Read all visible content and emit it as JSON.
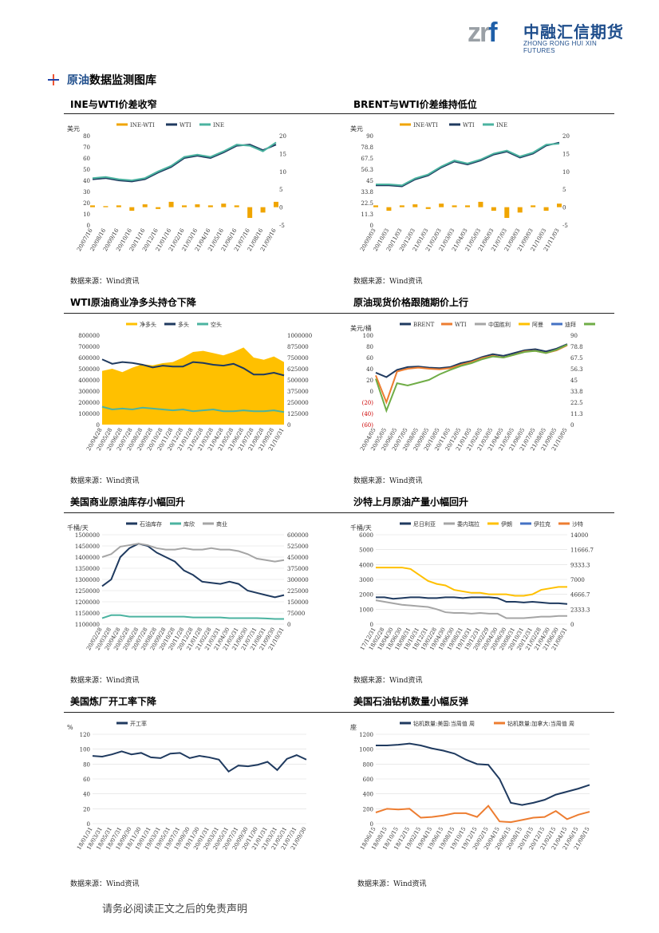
{
  "header": {
    "logo_zrf": "zrf",
    "logo_cn": "中融汇信期货",
    "logo_en": "ZHONG RONG HUI XIN FUTURES"
  },
  "section": {
    "title_a": "原油",
    "title_b": "数据监测图库"
  },
  "titles": [
    "INE与WTI价差收窄",
    "BRENT与WTI价差维持低位",
    "WTI原油商业净多头持仓下降",
    "原油现货价格跟随期价上行",
    "美国商业原油库存小幅回升",
    "沙特上月原油产量小幅回升",
    "美国炼厂开工率下降",
    "美国石油钻机数量小幅反弹"
  ],
  "source": "数据来源：Wind资讯",
  "footer": "请务必阅读正文之后的免责声明",
  "chart_data": [
    {
      "type": "line",
      "unit": "美元",
      "legend": [
        "INE-WTI",
        "WTI",
        "INE"
      ],
      "colors": [
        "#f0a500",
        "#1f3a5f",
        "#4bb3a0"
      ],
      "x": [
        "20/07/16",
        "20/08/16",
        "20/09/16",
        "20/10/16",
        "20/11/16",
        "20/12/16",
        "21/01/16",
        "21/02/16",
        "21/03/16",
        "21/04/16",
        "21/05/16",
        "21/06/16",
        "21/07/16",
        "21/08/16",
        "21/09/16"
      ],
      "series": [
        {
          "name": "WTI",
          "values": [
            41,
            42,
            40,
            39,
            41,
            47,
            52,
            60,
            62,
            60,
            65,
            71,
            72,
            67,
            72
          ]
        },
        {
          "name": "INE",
          "values": [
            42,
            43,
            41,
            40,
            42,
            48,
            53,
            61,
            63,
            61,
            66,
            72,
            71,
            66,
            74
          ]
        },
        {
          "name": "INE-WTI",
          "values": [
            0.5,
            0.3,
            0.5,
            -1.0,
            0.8,
            -0.5,
            1.5,
            0.5,
            0.8,
            0.5,
            1.0,
            0.5,
            -3.0,
            -1.5,
            1.5
          ]
        }
      ],
      "ylim": [
        0,
        80
      ],
      "y2lim": [
        -5,
        20
      ]
    },
    {
      "type": "line",
      "unit": "美元",
      "legend": [
        "INE-WTI",
        "WTI",
        "INE"
      ],
      "colors": [
        "#f0a500",
        "#1f3a5f",
        "#4bb3a0"
      ],
      "x": [
        "20/09/03",
        "20/10/03",
        "20/11/03",
        "20/12/03",
        "21/01/03",
        "21/02/03",
        "21/03/03",
        "21/04/03",
        "21/05/03",
        "21/06/03",
        "21/07/03",
        "21/08/03",
        "21/09/03",
        "21/10/03",
        "21/11/03"
      ],
      "series": [
        {
          "name": "WTI",
          "values": [
            40,
            40,
            39,
            46,
            50,
            58,
            64,
            61,
            65,
            71,
            74,
            68,
            72,
            80,
            83
          ]
        },
        {
          "name": "INE",
          "values": [
            41,
            41,
            40,
            47,
            51,
            59,
            65,
            62,
            66,
            72,
            75,
            69,
            73,
            81,
            82
          ]
        },
        {
          "name": "INE-WTI",
          "values": [
            0.5,
            -1.0,
            0.5,
            0.8,
            -0.5,
            1.0,
            0.5,
            0.5,
            1.5,
            -1.0,
            -3.0,
            -1.5,
            0.5,
            -1.0,
            1.0
          ]
        }
      ],
      "ylim": [
        0,
        90
      ],
      "y2lim": [
        -5,
        20
      ]
    },
    {
      "type": "area",
      "legend": [
        "净多头",
        "多头",
        "空头"
      ],
      "colors": [
        "#ffc000",
        "#1f3a5f",
        "#4bb3a0"
      ],
      "x": [
        "20/04/28",
        "20/05/28",
        "20/06/28",
        "20/07/28",
        "20/08/28",
        "20/09/28",
        "20/10/28",
        "20/11/28",
        "20/12/28",
        "21/01/28",
        "21/02/28",
        "21/03/28",
        "21/04/28",
        "21/05/28",
        "21/06/28",
        "21/07/28",
        "21/08/28",
        "21/09/28",
        "21/10/31"
      ],
      "series": [
        {
          "name": "净多头",
          "values": [
            480000,
            500000,
            470000,
            510000,
            540000,
            530000,
            550000,
            560000,
            600000,
            650000,
            660000,
            640000,
            620000,
            650000,
            690000,
            600000,
            580000,
            610000,
            560000
          ]
        },
        {
          "name": "多头",
          "values": [
            730000,
            680000,
            700000,
            690000,
            670000,
            640000,
            660000,
            650000,
            650000,
            700000,
            690000,
            670000,
            660000,
            680000,
            630000,
            560000,
            560000,
            580000,
            550000
          ]
        },
        {
          "name": "空头",
          "values": [
            200000,
            170000,
            180000,
            170000,
            190000,
            180000,
            170000,
            160000,
            170000,
            150000,
            160000,
            170000,
            150000,
            150000,
            160000,
            150000,
            150000,
            160000,
            140000
          ]
        }
      ],
      "ylim": [
        0,
        800000
      ],
      "y2lim": [
        0,
        1000000
      ]
    },
    {
      "type": "line",
      "unit": "美元/桶",
      "legend": [
        "BRENT",
        "WTI",
        "中国胜利",
        "阿曼",
        "迪拜",
        "OPEC"
      ],
      "colors": [
        "#1f3a5f",
        "#ed7d31",
        "#a5a5a5",
        "#ffc000",
        "#4472c4",
        "#70ad47"
      ],
      "x": [
        "20/04/05",
        "20/05/05",
        "20/06/05",
        "20/07/05",
        "20/08/05",
        "20/09/05",
        "20/10/05",
        "20/11/05",
        "20/12/05",
        "21/01/05",
        "21/02/05",
        "21/03/05",
        "21/04/05",
        "21/05/05",
        "21/06/05",
        "21/07/05",
        "21/08/05",
        "21/09/05",
        "21/10/05"
      ],
      "series": [
        {
          "name": "BRENT",
          "values": [
            33,
            25,
            38,
            43,
            44,
            42,
            41,
            43,
            50,
            54,
            61,
            66,
            63,
            68,
            73,
            75,
            71,
            76,
            84
          ]
        },
        {
          "name": "WTI",
          "values": [
            28,
            -20,
            35,
            40,
            42,
            40,
            39,
            41,
            47,
            52,
            59,
            63,
            60,
            65,
            71,
            72,
            68,
            73,
            82
          ]
        },
        {
          "name": "OPEC",
          "values": [
            22,
            -35,
            14,
            10,
            15,
            20,
            30,
            38,
            45,
            50,
            57,
            62,
            60,
            65,
            70,
            72,
            68,
            74,
            83
          ]
        }
      ],
      "ylim": [
        -60,
        100
      ],
      "y2lim": [
        0,
        90
      ]
    },
    {
      "type": "line",
      "unit": "千桶/天",
      "legend": [
        "石油库存",
        "库欣",
        "商业"
      ],
      "colors": [
        "#1f3a5f",
        "#4bb3a0",
        "#a5a5a5"
      ],
      "x": [
        "20/02/28",
        "20/03/28",
        "20/04/28",
        "20/05/28",
        "20/06/28",
        "20/07/28",
        "20/08/28",
        "20/09/28",
        "20/10/28",
        "20/11/28",
        "20/12/28",
        "21/01/28",
        "21/02/28",
        "21/03/31",
        "21/04/30",
        "21/05/31",
        "21/06/30",
        "21/07/31",
        "21/08/31",
        "21/09/30",
        "21/10/31"
      ],
      "series": [
        {
          "name": "石油库存",
          "values": [
            1270000,
            1300000,
            1400000,
            1440000,
            1460000,
            1450000,
            1420000,
            1400000,
            1380000,
            1340000,
            1320000,
            1290000,
            1285000,
            1280000,
            1290000,
            1280000,
            1250000,
            1240000,
            1230000,
            1220000,
            1230000
          ]
        },
        {
          "name": "库欣",
          "values": [
            40000,
            60000,
            60000,
            50000,
            50000,
            50000,
            50000,
            50000,
            50000,
            50000,
            45000,
            45000,
            45000,
            45000,
            40000,
            40000,
            40000,
            40000,
            38000,
            35000,
            35000
          ]
        },
        {
          "name": "商业",
          "values": [
            450000,
            470000,
            520000,
            530000,
            540000,
            530000,
            510000,
            500000,
            500000,
            510000,
            500000,
            500000,
            510000,
            500000,
            500000,
            490000,
            470000,
            440000,
            430000,
            420000,
            430000
          ]
        }
      ],
      "ylim": [
        1100000,
        1500000
      ],
      "y2lim": [
        0,
        600000
      ]
    },
    {
      "type": "line",
      "unit": "千桶/天",
      "legend": [
        "尼日利亚",
        "委内瑞拉",
        "伊朗",
        "伊拉克",
        "沙特"
      ],
      "colors": [
        "#1f3a5f",
        "#a5a5a5",
        "#ffc000",
        "#4472c4",
        "#ed7d31"
      ],
      "x": [
        "17/12/31",
        "18/02/28",
        "18/04/30",
        "18/06/30",
        "18/08/31",
        "18/10/31",
        "18/12/31",
        "19/02/28",
        "19/04/30",
        "19/06/30",
        "19/08/31",
        "19/10/31",
        "19/12/31",
        "20/02/29",
        "20/04/30",
        "20/06/30",
        "20/08/31",
        "20/10/31",
        "20/12/31",
        "21/02/28",
        "21/04/30",
        "21/06/30",
        "21/08/31"
      ],
      "series": [
        {
          "name": "尼日利亚",
          "values": [
            1800,
            1800,
            1700,
            1750,
            1800,
            1800,
            1750,
            1750,
            1800,
            1800,
            1750,
            1800,
            1800,
            1800,
            1750,
            1500,
            1500,
            1450,
            1500,
            1450,
            1400,
            1400,
            1350
          ]
        },
        {
          "name": "委内瑞拉",
          "values": [
            1600,
            1500,
            1400,
            1300,
            1250,
            1200,
            1150,
            1000,
            800,
            750,
            750,
            700,
            750,
            700,
            700,
            400,
            400,
            400,
            450,
            500,
            500,
            550,
            550
          ]
        },
        {
          "name": "伊朗",
          "values": [
            3800,
            3800,
            3800,
            3800,
            3700,
            3300,
            2900,
            2700,
            2600,
            2300,
            2200,
            2100,
            2100,
            2000,
            2000,
            2000,
            1900,
            1900,
            2000,
            2300,
            2400,
            2500,
            2500
          ]
        }
      ],
      "ylim": [
        0,
        6000
      ],
      "y2lim": [
        0,
        14000
      ]
    },
    {
      "type": "line",
      "unit": "%",
      "legend": [
        "开工率"
      ],
      "colors": [
        "#1f3a5f"
      ],
      "x": [
        "18/01/31",
        "18/03/31",
        "18/05/31",
        "18/07/31",
        "18/09/30",
        "18/11/30",
        "19/01/31",
        "19/03/31",
        "19/05/31",
        "19/07/31",
        "19/09/30",
        "19/11/30",
        "20/01/31",
        "20/03/31",
        "20/05/31",
        "20/07/31",
        "20/09/30",
        "20/11/30",
        "21/01/31",
        "21/03/31",
        "21/05/31",
        "21/07/31",
        "21/09/30"
      ],
      "series": [
        {
          "name": "开工率",
          "values": [
            91,
            90,
            93,
            97,
            93,
            95,
            89,
            88,
            94,
            95,
            88,
            91,
            89,
            86,
            70,
            78,
            77,
            79,
            83,
            72,
            87,
            92,
            86
          ]
        }
      ],
      "ylim": [
        0,
        120
      ]
    },
    {
      "type": "line",
      "unit": "座",
      "legend": [
        "钻机数量:美国:当周值 周",
        "钻机数量:加拿大:当周值 周"
      ],
      "colors": [
        "#1f3a5f",
        "#ed7d31"
      ],
      "x": [
        "18/06/15",
        "18/08/15",
        "18/10/15",
        "18/12/15",
        "19/02/15",
        "19/04/15",
        "19/06/15",
        "19/08/15",
        "19/10/15",
        "19/12/15",
        "20/02/15",
        "20/04/15",
        "20/06/15",
        "20/08/15",
        "20/10/15",
        "20/12/15",
        "21/02/15",
        "21/04/15",
        "21/06/15",
        "21/08/15"
      ],
      "series": [
        {
          "name": "钻机数量:美国:当周值 周",
          "values": [
            1050,
            1050,
            1060,
            1075,
            1050,
            1010,
            980,
            940,
            860,
            800,
            790,
            600,
            280,
            250,
            280,
            320,
            390,
            430,
            470,
            520
          ]
        },
        {
          "name": "钻机数量:加拿大:当周值 周",
          "values": [
            150,
            200,
            190,
            200,
            80,
            90,
            110,
            140,
            140,
            90,
            240,
            30,
            20,
            50,
            80,
            90,
            170,
            60,
            120,
            160
          ]
        }
      ],
      "ylim": [
        0,
        1200
      ]
    }
  ]
}
